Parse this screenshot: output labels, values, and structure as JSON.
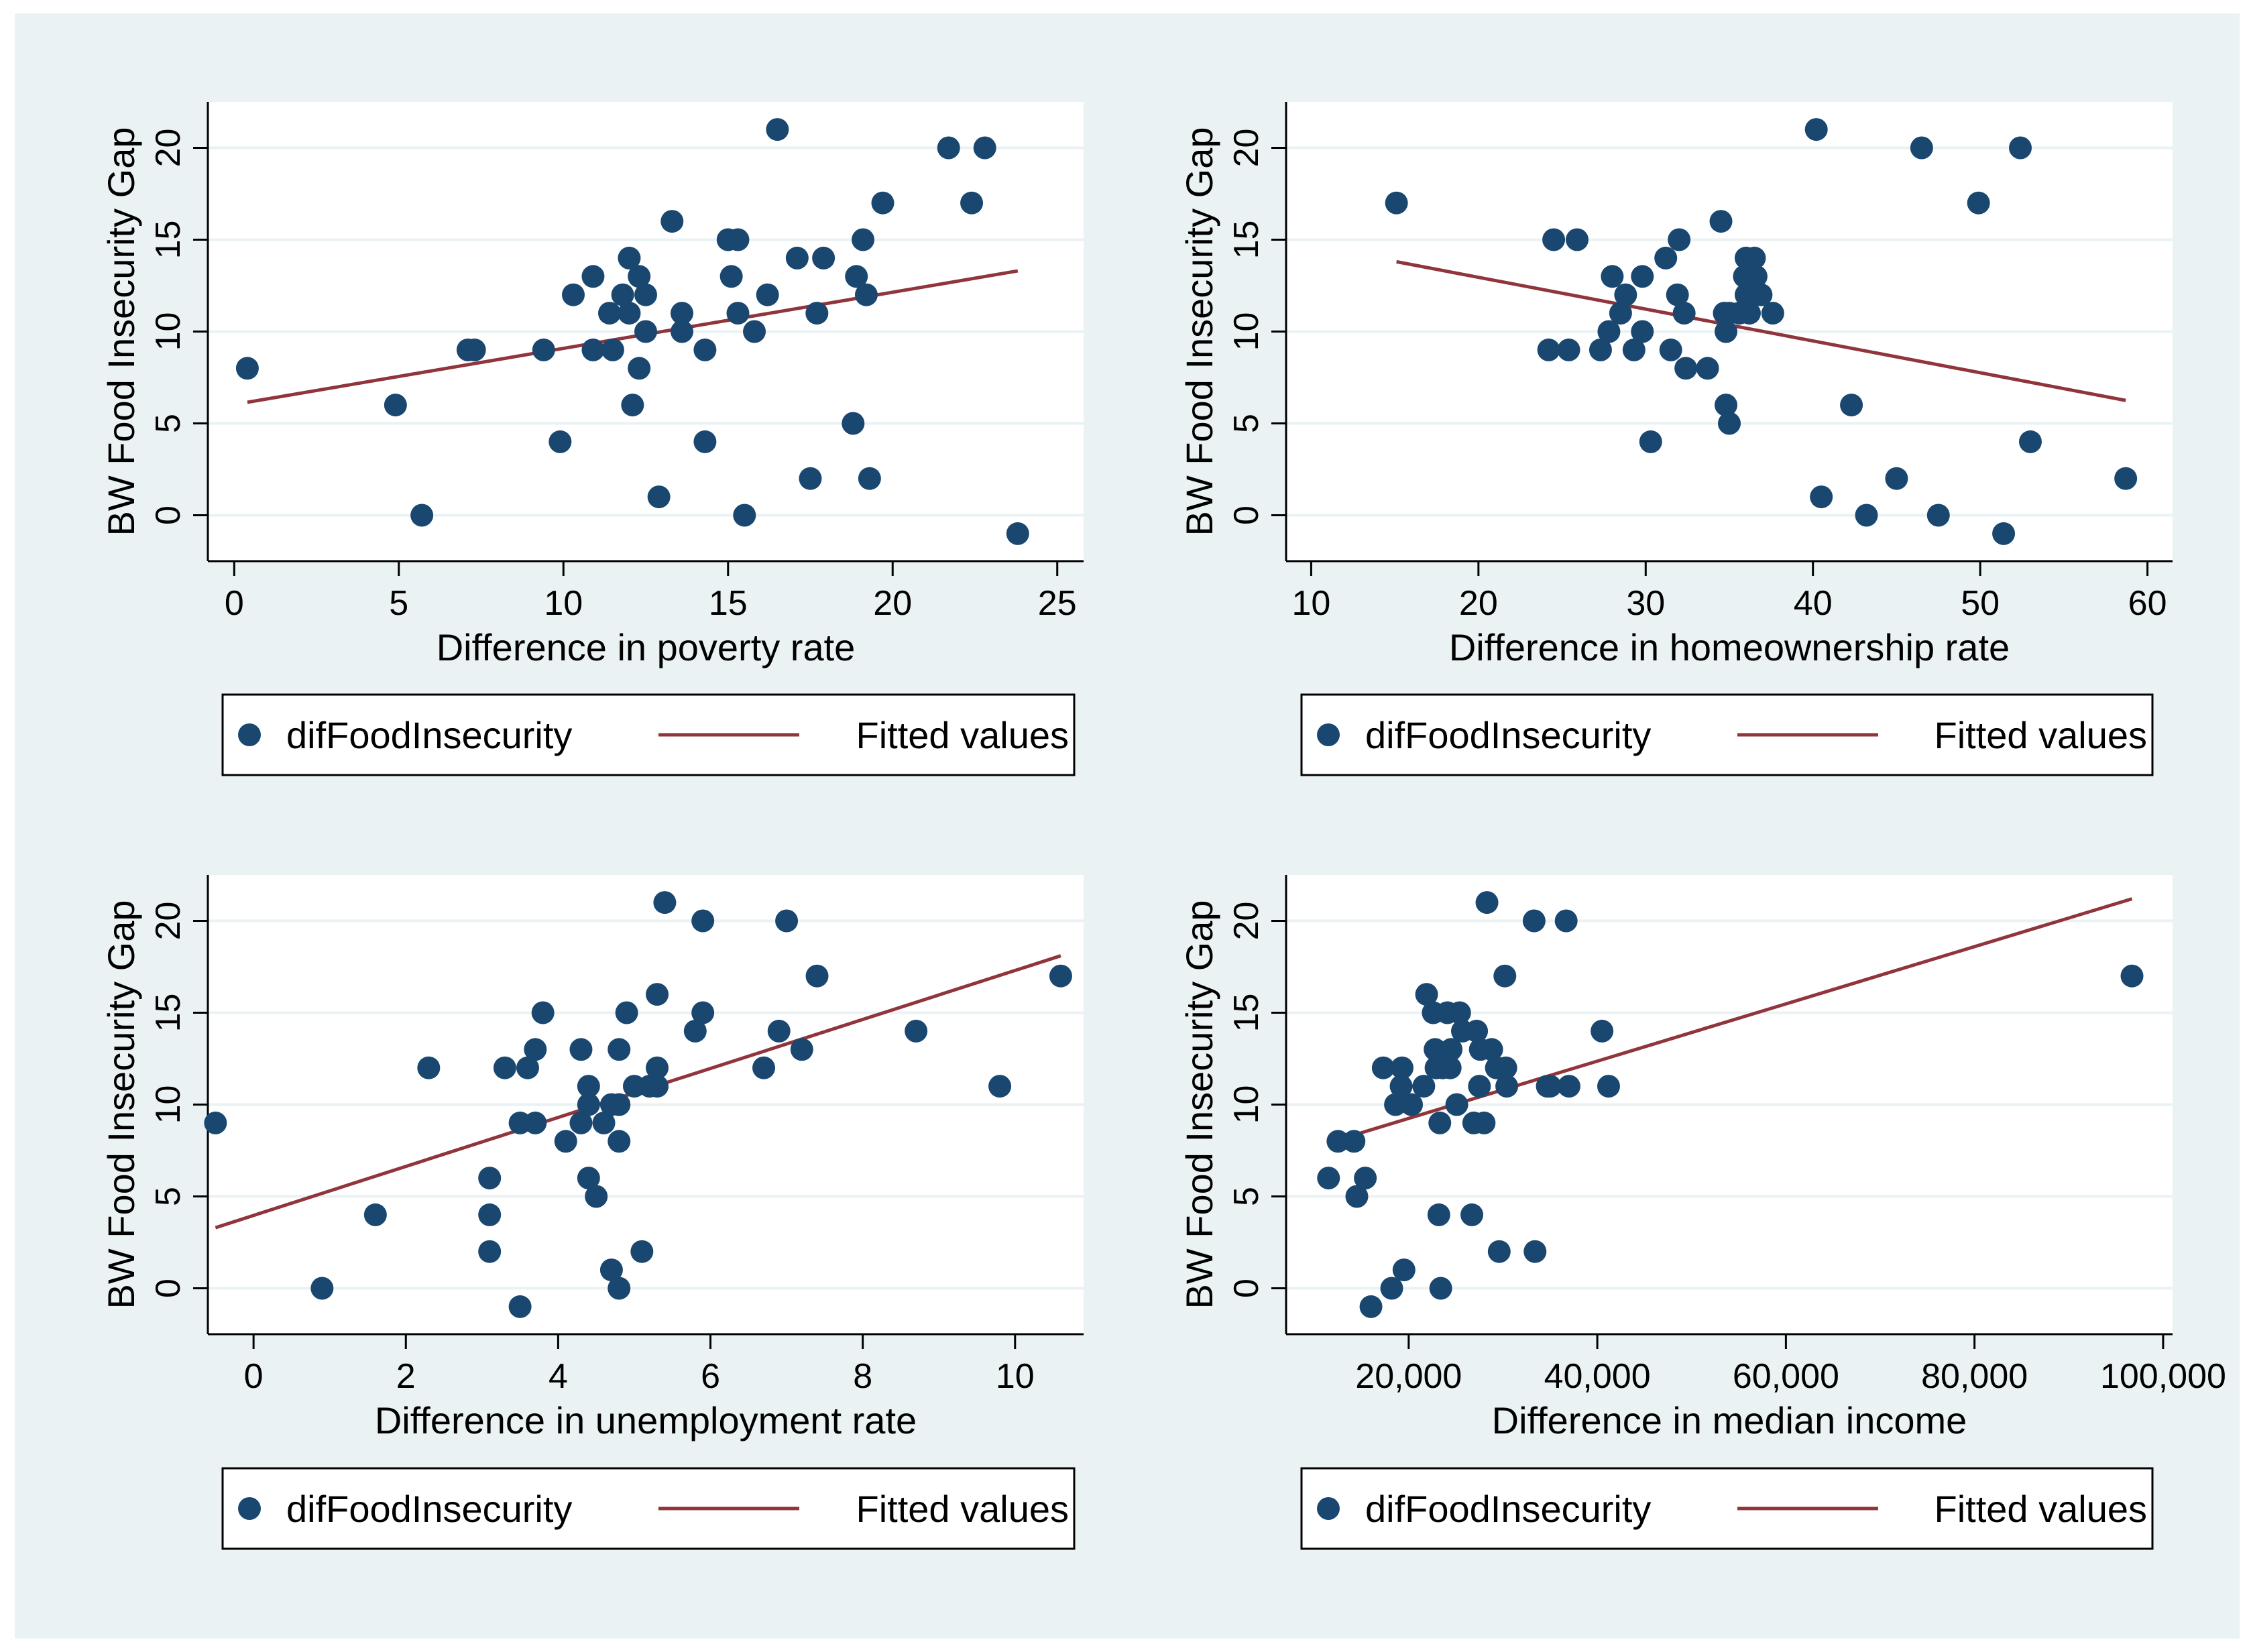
{
  "colors": {
    "marker": "#1a476f",
    "fit_line": "#90353b",
    "background": "#eaf2f3"
  },
  "chart_data": [
    {
      "type": "scatter",
      "xlabel": "Difference in poverty rate",
      "ylabel": "BW Food Insecurity Gap",
      "xlim": [
        -0.8,
        25.8
      ],
      "ylim": [
        -2.5,
        22.5
      ],
      "xticks": [
        0,
        5,
        10,
        15,
        20,
        25
      ],
      "xtick_labels": [
        "0",
        "5",
        "10",
        "15",
        "20",
        "25"
      ],
      "yticks": [
        0,
        5,
        10,
        15,
        20
      ],
      "ytick_labels": [
        "0",
        "5",
        "10",
        "15",
        "20"
      ],
      "legend": [
        "difFoodInsecurity",
        "Fitted values"
      ],
      "series": [
        {
          "name": "difFoodInsecurity",
          "x": [
            0.4,
            4.9,
            5.7,
            7.1,
            7.3,
            9.4,
            9.9,
            10.3,
            10.9,
            10.9,
            11.4,
            11.5,
            11.8,
            12.0,
            12.0,
            12.1,
            12.3,
            12.3,
            12.5,
            12.5,
            12.9,
            13.3,
            13.6,
            13.6,
            14.3,
            14.3,
            15.0,
            15.1,
            15.3,
            15.3,
            15.5,
            15.8,
            16.2,
            16.5,
            17.1,
            17.5,
            17.7,
            17.9,
            18.8,
            18.9,
            19.1,
            19.2,
            19.3,
            19.7,
            21.7,
            22.4,
            22.8,
            23.8
          ],
          "y": [
            8,
            6,
            0,
            9,
            9,
            9,
            4,
            12,
            13,
            9,
            11,
            9,
            12,
            14,
            11,
            6,
            13,
            8,
            12,
            10,
            1,
            16,
            11,
            10,
            9,
            4,
            15,
            13,
            15,
            11,
            0,
            10,
            12,
            21,
            14,
            2,
            11,
            14,
            5,
            13,
            15,
            12,
            2,
            17,
            20,
            17,
            20,
            -1
          ]
        },
        {
          "name": "Fitted values",
          "type": "line",
          "x": [
            0.4,
            23.8
          ],
          "y": [
            6.15,
            13.3
          ]
        }
      ]
    },
    {
      "type": "scatter",
      "xlabel": "Difference in homeownership rate",
      "ylabel": "BW Food Insecurity Gap",
      "xlim": [
        8.5,
        61.5
      ],
      "ylim": [
        -2.5,
        22.5
      ],
      "xticks": [
        10,
        20,
        30,
        40,
        50,
        60
      ],
      "xtick_labels": [
        "10",
        "20",
        "30",
        "40",
        "50",
        "60"
      ],
      "yticks": [
        0,
        5,
        10,
        15,
        20
      ],
      "ytick_labels": [
        "0",
        "5",
        "10",
        "15",
        "20"
      ],
      "legend": [
        "difFoodInsecurity",
        "Fitted values"
      ],
      "series": [
        {
          "name": "difFoodInsecurity",
          "x": [
            15.1,
            24.2,
            24.5,
            25.4,
            25.9,
            27.3,
            27.8,
            28.0,
            28.5,
            28.8,
            29.3,
            29.8,
            29.8,
            30.3,
            31.2,
            31.5,
            31.9,
            32.0,
            32.3,
            32.4,
            33.7,
            34.5,
            34.7,
            34.8,
            34.8,
            35.0,
            35.0,
            35.6,
            35.9,
            36.0,
            36.0,
            36.2,
            36.3,
            36.5,
            36.5,
            36.6,
            36.9,
            37.6,
            40.2,
            40.5,
            42.3,
            43.2,
            45.0,
            46.5,
            47.5,
            49.9,
            51.4,
            52.4,
            53.0,
            58.7
          ],
          "y": [
            17,
            9,
            15,
            9,
            15,
            9,
            10,
            13,
            11,
            12,
            9,
            10,
            13,
            4,
            14,
            9,
            12,
            15,
            11,
            8,
            8,
            16,
            11,
            10,
            6,
            5,
            11,
            11,
            13,
            14,
            12,
            11,
            13,
            12,
            14,
            13,
            12,
            11,
            21,
            1,
            6,
            0,
            2,
            20,
            0,
            17,
            -1,
            20,
            4,
            2
          ]
        },
        {
          "name": "Fitted values",
          "type": "line",
          "x": [
            15.1,
            58.7
          ],
          "y": [
            13.8,
            6.25
          ]
        }
      ]
    },
    {
      "type": "scatter",
      "xlabel": "Difference in unemployment rate",
      "ylabel": "BW Food Insecurity Gap",
      "xlim": [
        -0.6,
        10.9
      ],
      "ylim": [
        -2.5,
        22.5
      ],
      "xticks": [
        0,
        2,
        4,
        6,
        8,
        10
      ],
      "xtick_labels": [
        "0",
        "2",
        "4",
        "6",
        "8",
        "10"
      ],
      "yticks": [
        0,
        5,
        10,
        15,
        20
      ],
      "ytick_labels": [
        "0",
        "5",
        "10",
        "15",
        "20"
      ],
      "legend": [
        "difFoodInsecurity",
        "Fitted values"
      ],
      "series": [
        {
          "name": "difFoodInsecurity",
          "x": [
            -0.5,
            0.9,
            1.6,
            2.3,
            3.1,
            3.1,
            3.1,
            3.3,
            3.5,
            3.5,
            3.6,
            3.7,
            3.7,
            3.8,
            4.1,
            4.3,
            4.3,
            4.4,
            4.4,
            4.4,
            4.5,
            4.6,
            4.7,
            4.7,
            4.8,
            4.8,
            4.8,
            4.8,
            4.9,
            5.0,
            5.1,
            5.2,
            5.3,
            5.3,
            5.3,
            5.4,
            5.8,
            5.9,
            5.9,
            6.7,
            6.9,
            7.0,
            7.2,
            7.4,
            8.7,
            9.8,
            10.6
          ],
          "y": [
            9,
            0,
            4,
            12,
            6,
            4,
            2,
            12,
            -1,
            9,
            12,
            13,
            9,
            15,
            8,
            13,
            9,
            11,
            10,
            6,
            5,
            9,
            10,
            1,
            13,
            10,
            8,
            0,
            15,
            11,
            2,
            11,
            12,
            16,
            11,
            21,
            14,
            20,
            15,
            12,
            14,
            20,
            13,
            17,
            14,
            11,
            17
          ]
        },
        {
          "name": "Fitted values",
          "type": "line",
          "x": [
            -0.5,
            10.6
          ],
          "y": [
            3.3,
            18.1
          ]
        }
      ]
    },
    {
      "type": "scatter",
      "xlabel": "Difference in median income",
      "ylabel": "BW Food Insecurity Gap",
      "xlim": [
        7000,
        101000
      ],
      "ylim": [
        -2.5,
        22.5
      ],
      "xticks": [
        20000,
        40000,
        60000,
        80000,
        100000
      ],
      "xtick_labels": [
        "20,000",
        "40,000",
        "60,000",
        "80,000",
        "100,000"
      ],
      "yticks": [
        0,
        5,
        10,
        15,
        20
      ],
      "ytick_labels": [
        "0",
        "5",
        "10",
        "15",
        "20"
      ],
      "legend": [
        "difFoodInsecurity",
        "Fitted values"
      ],
      "series": [
        {
          "name": "difFoodInsecurity",
          "x": [
            11500,
            12500,
            14200,
            14500,
            15400,
            16000,
            17300,
            18200,
            18600,
            19200,
            19300,
            19500,
            20300,
            21600,
            21900,
            22600,
            22800,
            22900,
            23200,
            23300,
            23400,
            23600,
            24100,
            24400,
            24500,
            25100,
            25400,
            25700,
            26700,
            26900,
            27200,
            27500,
            27600,
            28000,
            28300,
            28800,
            29300,
            29600,
            30200,
            30300,
            30400,
            33300,
            33400,
            34700,
            35000,
            36700,
            37000,
            40500,
            41200,
            96700
          ],
          "y": [
            6,
            8,
            8,
            5,
            6,
            -1,
            12,
            0,
            10,
            11,
            12,
            1,
            10,
            11,
            16,
            15,
            13,
            12,
            4,
            9,
            0,
            12,
            15,
            12,
            13,
            10,
            15,
            14,
            4,
            9,
            14,
            11,
            13,
            9,
            21,
            13,
            12,
            2,
            17,
            12,
            11,
            20,
            2,
            11,
            11,
            20,
            11,
            14,
            11,
            17
          ]
        },
        {
          "name": "Fitted values",
          "type": "line",
          "x": [
            12000,
            96700
          ],
          "y": [
            8.0,
            21.2
          ]
        }
      ]
    }
  ]
}
